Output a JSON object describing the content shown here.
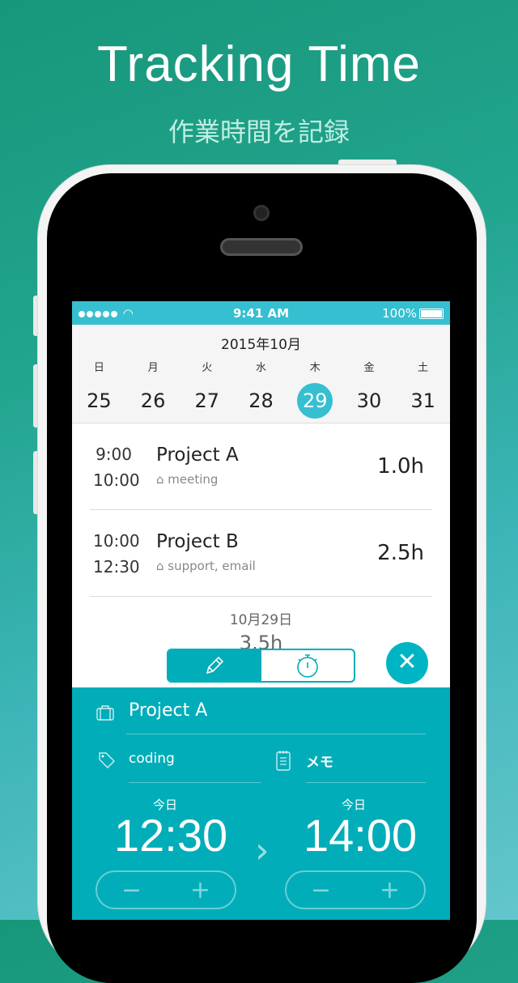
{
  "hero": {
    "title": "Tracking Time",
    "subtitle": "作業時間を記録"
  },
  "status": {
    "time": "9:41 AM",
    "battery": "100%"
  },
  "calendar": {
    "month": "2015年10月",
    "weekdays": [
      "日",
      "月",
      "火",
      "水",
      "木",
      "金",
      "土"
    ],
    "dates": [
      "25",
      "26",
      "27",
      "28",
      "29",
      "30",
      "31"
    ],
    "selected": "29"
  },
  "entries": [
    {
      "start": "9:00",
      "end": "10:00",
      "project": "Project A",
      "tags": "meeting",
      "hours": "1.0h"
    },
    {
      "start": "10:00",
      "end": "12:30",
      "project": "Project B",
      "tags": "support, email",
      "hours": "2.5h"
    }
  ],
  "summary": {
    "date": "10月29日",
    "total": "3.5h"
  },
  "editor": {
    "project": "Project A",
    "tag": "coding",
    "memo": "メモ",
    "start_label": "今日",
    "start": "12:30",
    "end_label": "今日",
    "end": "14:00",
    "minus": "−",
    "plus": "+"
  },
  "colors": {
    "accent": "#00adb8",
    "status_bar": "#35bfd0"
  }
}
